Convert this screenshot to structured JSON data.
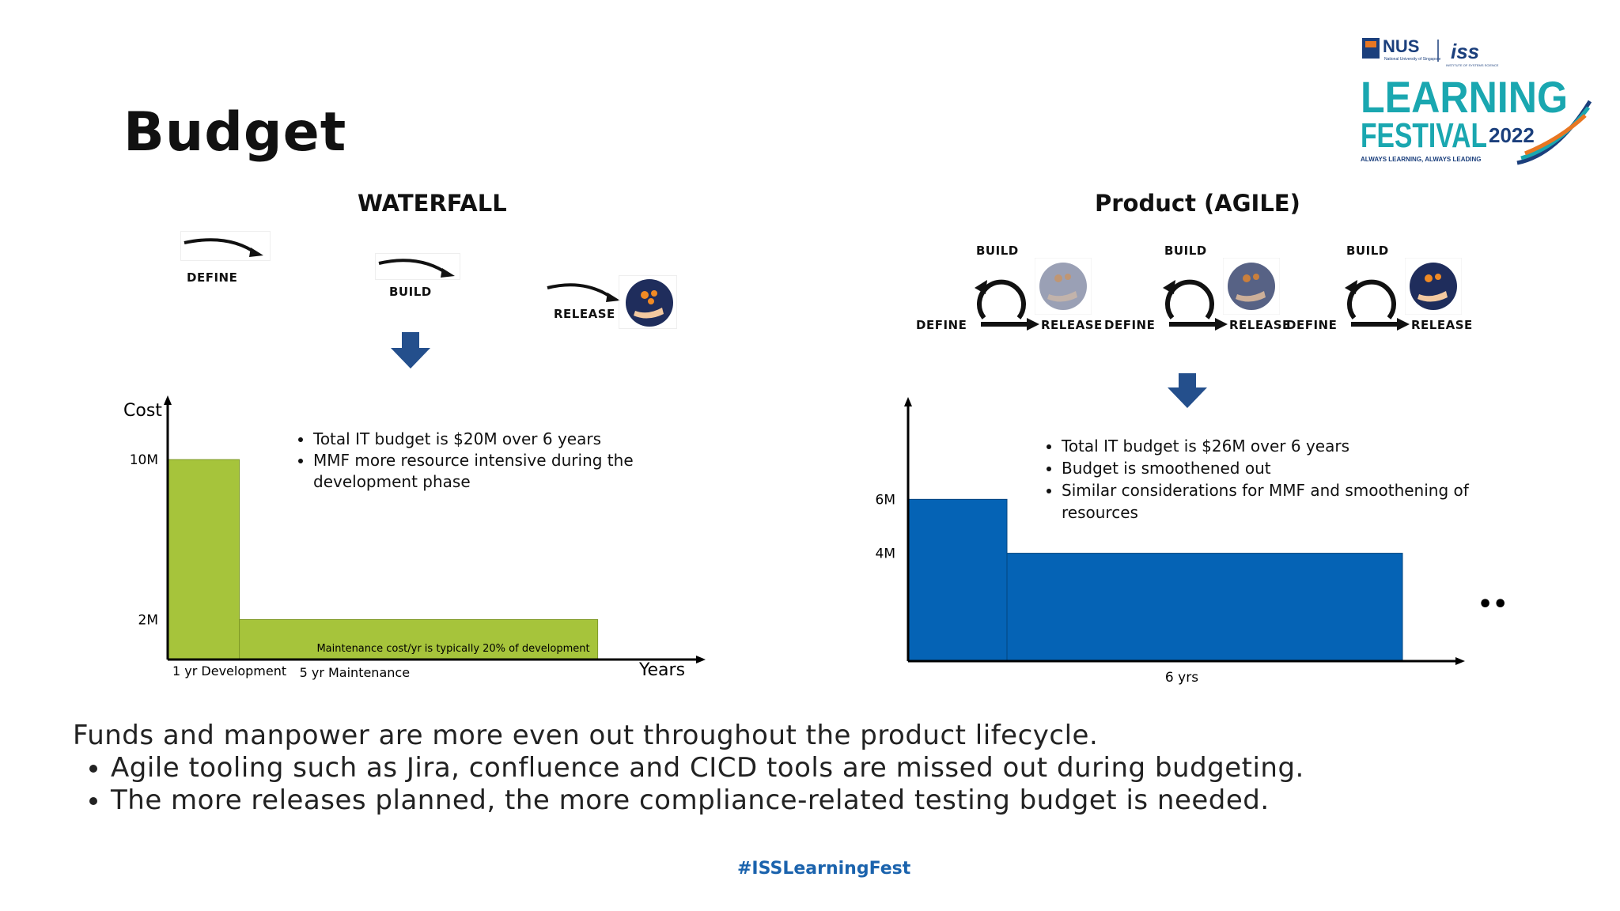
{
  "slide": {
    "title": "Budget",
    "hashtag": "#ISSLearningFest"
  },
  "logo": {
    "nus": "NUS",
    "nus_sub": "National University of Singapore",
    "iss": "iss",
    "iss_sub": "INSTITUTE OF SYSTEMS SCIENCE",
    "line1": "LEARNING",
    "line2": "FESTIVAL",
    "year": "2022",
    "tagline": "ALWAYS LEARNING, ALWAYS LEADING",
    "colors": {
      "teal": "#1aa7b0",
      "navy": "#1b3f7c",
      "orange": "#e87722"
    }
  },
  "waterfall": {
    "heading": "WATERFALL",
    "steps": [
      "DEFINE",
      "BUILD",
      "RELEASE"
    ],
    "bullets": [
      "Total IT budget is $20M over 6 years",
      "MMF more resource intensive during the development phase"
    ],
    "maintenance_note": "Maintenance cost/yr is typically 20% of development"
  },
  "agile": {
    "heading": "Product (AGILE)",
    "cycles": [
      {
        "define": "DEFINE",
        "build": "BUILD",
        "release": "RELEASE"
      },
      {
        "define": "DEFINE",
        "build": "BUILD",
        "release": "RELEASE"
      },
      {
        "define": "DEFINE",
        "build": "BUILD",
        "release": "RELEASE"
      }
    ],
    "bullets": [
      "Total IT budget is $26M over 6 years",
      "Budget is smoothened out",
      "Similar considerations for MMF and smoothening of resources"
    ],
    "continuation": "•••"
  },
  "summary": {
    "lead": "Funds and manpower are more even out throughout the product lifecycle.",
    "bullets": [
      "Agile tooling such as Jira, confluence and CICD tools are missed out during budgeting.",
      "The more releases planned, the more compliance-related testing budget is needed."
    ]
  },
  "colors": {
    "waterfall_bar": "#a6c43b",
    "agile_bar": "#0563b5",
    "arrow": "#244f8c"
  },
  "chart_data": [
    {
      "type": "bar",
      "ylabel": "Cost",
      "xlabel": "Years",
      "yticks": [
        {
          "label": "2M",
          "value": 2
        },
        {
          "label": "10M",
          "value": 10
        }
      ],
      "ylim": [
        0,
        12.5
      ],
      "xlim": [
        0,
        6
      ],
      "categories": [
        "1 yr Development",
        "5 yr Maintenance"
      ],
      "segments": [
        {
          "label": "1 yr Development",
          "x0": 0,
          "x1": 1,
          "value": 10
        },
        {
          "label": "5 yr Maintenance",
          "x0": 1,
          "x1": 6,
          "value": 2
        }
      ]
    },
    {
      "type": "bar",
      "ylabel": "",
      "xlabel": "6 yrs",
      "yticks": [
        {
          "label": "4M",
          "value": 4
        },
        {
          "label": "6M",
          "value": 6
        }
      ],
      "ylim": [
        0,
        9.5
      ],
      "xlim": [
        0,
        5.6
      ],
      "segments": [
        {
          "x0": 0,
          "x1": 1,
          "value": 6
        },
        {
          "x0": 1,
          "x1": 5,
          "value": 4
        }
      ]
    }
  ]
}
